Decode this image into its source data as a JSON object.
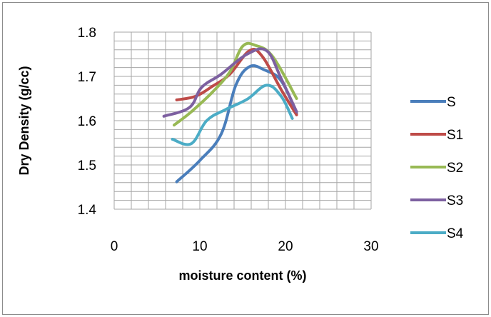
{
  "chart_data": {
    "type": "line",
    "title": "",
    "xlabel": "moisture content (%)",
    "ylabel": "Dry Density (g/cc)",
    "xlim": [
      0,
      30
    ],
    "ylim": [
      1.4,
      1.8
    ],
    "x_ticks": [
      0,
      10,
      20,
      30
    ],
    "x_tick_labels": [
      "0",
      "10",
      "20",
      "30"
    ],
    "y_ticks": [
      1.4,
      1.5,
      1.6,
      1.7,
      1.8
    ],
    "y_tick_labels": [
      "1.4",
      "1.5",
      "1.6",
      "1.7",
      "1.8"
    ],
    "grid": true,
    "legend_position": "right",
    "series": [
      {
        "name": "S",
        "color": "#4a7ebb",
        "points": [
          [
            7.3,
            1.462
          ],
          [
            10.0,
            1.51
          ],
          [
            12.5,
            1.57
          ],
          [
            14.2,
            1.68
          ],
          [
            15.8,
            1.722
          ],
          [
            17.5,
            1.715
          ],
          [
            19.5,
            1.69
          ],
          [
            21.3,
            1.617
          ]
        ]
      },
      {
        "name": "S1",
        "color": "#be4b48",
        "points": [
          [
            7.3,
            1.647
          ],
          [
            9.5,
            1.655
          ],
          [
            11.5,
            1.678
          ],
          [
            13.5,
            1.705
          ],
          [
            15.8,
            1.758
          ],
          [
            17.3,
            1.745
          ],
          [
            19.5,
            1.67
          ],
          [
            21.3,
            1.613
          ]
        ]
      },
      {
        "name": "S2",
        "color": "#98b954",
        "points": [
          [
            7.0,
            1.59
          ],
          [
            9.0,
            1.62
          ],
          [
            11.5,
            1.665
          ],
          [
            13.5,
            1.71
          ],
          [
            15.0,
            1.768
          ],
          [
            16.5,
            1.77
          ],
          [
            18.5,
            1.745
          ],
          [
            21.3,
            1.65
          ]
        ]
      },
      {
        "name": "S3",
        "color": "#7d60a0",
        "points": [
          [
            5.8,
            1.61
          ],
          [
            8.8,
            1.63
          ],
          [
            10.2,
            1.675
          ],
          [
            12.5,
            1.705
          ],
          [
            15.5,
            1.75
          ],
          [
            17.8,
            1.758
          ],
          [
            19.5,
            1.695
          ],
          [
            21.3,
            1.62
          ]
        ]
      },
      {
        "name": "S4",
        "color": "#4bacc6",
        "points": [
          [
            6.8,
            1.558
          ],
          [
            9.0,
            1.548
          ],
          [
            10.8,
            1.6
          ],
          [
            13.0,
            1.625
          ],
          [
            15.5,
            1.648
          ],
          [
            17.8,
            1.68
          ],
          [
            19.5,
            1.655
          ],
          [
            20.8,
            1.605
          ]
        ]
      }
    ]
  }
}
